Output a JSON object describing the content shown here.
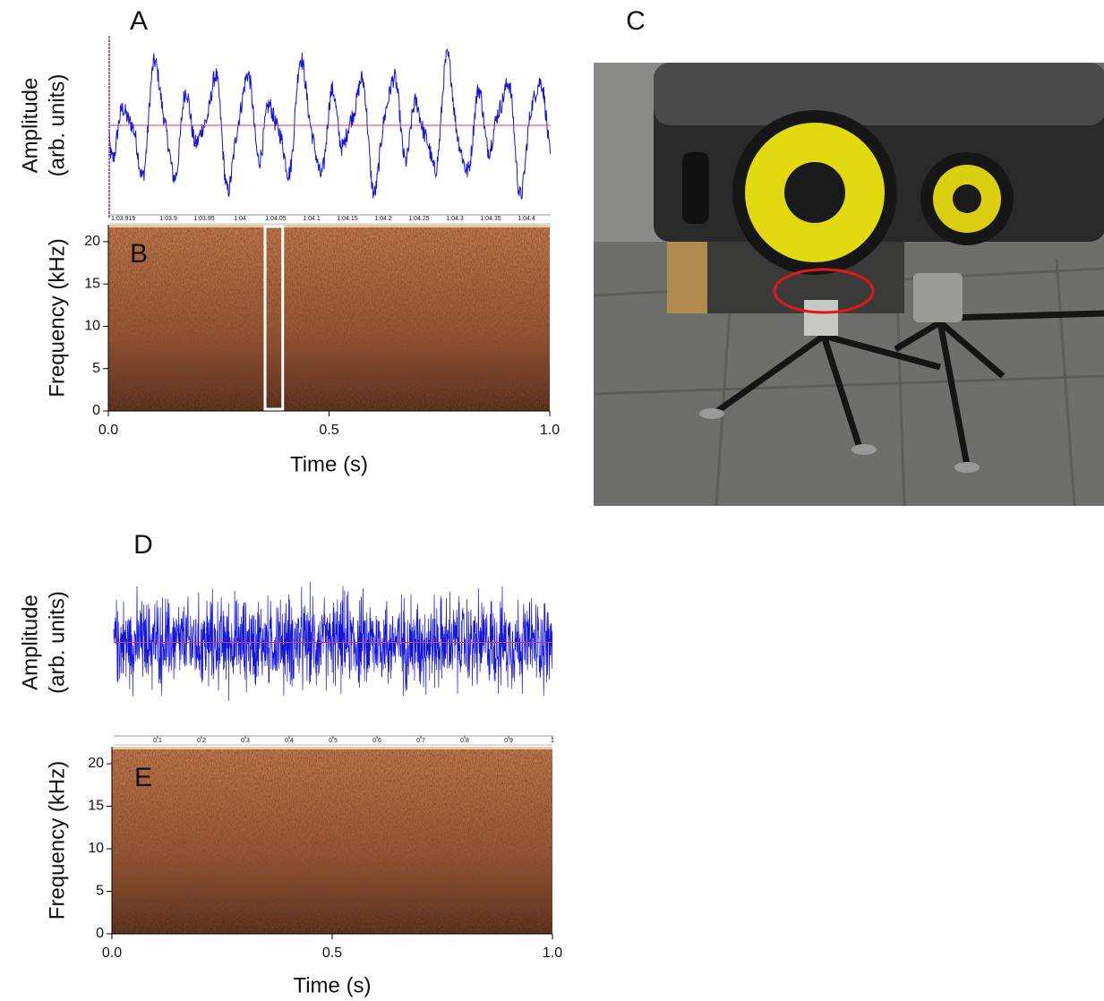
{
  "chart_data": [
    {
      "type": "waveform",
      "panel": "A",
      "ylabel": [
        "Amplitude",
        "(arb. units)"
      ],
      "color": "#1414dc",
      "time_labels": [
        "1:03.919",
        "1:03.9",
        "1:03.95",
        "1:04",
        "1:04.05",
        "1:04.1",
        "1:04.15",
        "1:04.2",
        "1:04.25",
        "1:04.3",
        "1:04.35",
        "1:04.4"
      ]
    },
    {
      "type": "spectrogram",
      "panel": "B",
      "ylabel": "Frequency (kHz)",
      "xlabel": "Time (s)",
      "xlim": [
        0,
        1
      ],
      "xticks": [
        {
          "value": 0,
          "label": "0.0"
        },
        0.5,
        {
          "value": 1,
          "label": "1.0"
        }
      ],
      "ylim": [
        0,
        22
      ],
      "yticks": [
        0,
        5,
        10,
        15,
        20
      ],
      "highlight_x": [
        0.355,
        0.395
      ]
    },
    {
      "type": "waveform",
      "panel": "D",
      "ylabel": [
        "Amplitude",
        "(arb. units)"
      ],
      "color": "#1414dc",
      "xlim": [
        0,
        1
      ],
      "xticks": [
        0.1,
        0.2,
        0.3,
        0.4,
        0.5,
        0.6,
        0.7,
        0.8,
        0.9,
        1
      ]
    },
    {
      "type": "spectrogram",
      "panel": "E",
      "ylabel": "Frequency (kHz)",
      "xlabel": "Time (s)",
      "xlim": [
        0,
        1
      ],
      "xticks": [
        {
          "value": 0,
          "label": "0.0"
        },
        0.5,
        {
          "value": 1,
          "label": "1.0"
        }
      ],
      "ylim": [
        0,
        22
      ],
      "yticks": [
        0,
        5,
        10,
        15,
        20
      ]
    }
  ],
  "photo": {
    "panel": "C"
  }
}
